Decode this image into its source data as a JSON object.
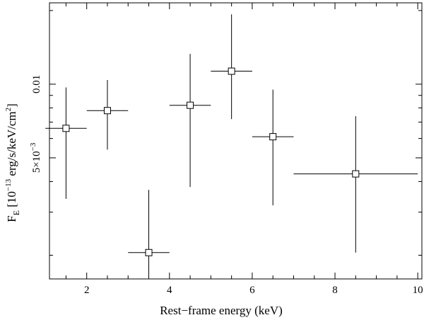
{
  "chart_data": {
    "type": "scatter",
    "title": "",
    "xlabel": "Rest−frame energy (keV)",
    "ylabel": "F_E [10^{-13} erg/s/keV/cm^2]",
    "ylabel_parts": {
      "f": "F",
      "sub": "E",
      "pre": " [10",
      "exp": "−13",
      "mid": " erg/s/keV/cm",
      "exp2": "2",
      "post": "]"
    },
    "xlim": [
      1.1,
      10.1
    ],
    "ylim": [
      0.0016,
      0.0215
    ],
    "yscale": "log",
    "x_ticks": [
      {
        "value": 2,
        "label": "2"
      },
      {
        "value": 4,
        "label": "4"
      },
      {
        "value": 6,
        "label": "6"
      },
      {
        "value": 8,
        "label": "8"
      },
      {
        "value": 10,
        "label": "10"
      }
    ],
    "y_ticks": [
      {
        "value": 0.005,
        "label_base": "5×10",
        "label_exp": "−3"
      },
      {
        "value": 0.01,
        "label_base": "0.01",
        "label_exp": ""
      }
    ],
    "y_minor_ticks": [
      0.002,
      0.003,
      0.004,
      0.006,
      0.007,
      0.008,
      0.009,
      0.02
    ],
    "x_minor_step": 0.5,
    "points": [
      {
        "x": 1.5,
        "xerr": 0.5,
        "y": 0.0066,
        "ylow": 0.0034,
        "yhigh": 0.0097
      },
      {
        "x": 2.5,
        "xerr": 0.5,
        "y": 0.0078,
        "ylow": 0.0054,
        "yhigh": 0.0104
      },
      {
        "x": 3.5,
        "xerr": 0.5,
        "y": 0.00205,
        "ylow": 0.00165,
        "yhigh": 0.0037
      },
      {
        "x": 4.5,
        "xerr": 0.5,
        "y": 0.0082,
        "ylow": 0.0038,
        "yhigh": 0.0133
      },
      {
        "x": 5.5,
        "xerr": 0.5,
        "y": 0.0113,
        "ylow": 0.0072,
        "yhigh": 0.0193
      },
      {
        "x": 6.5,
        "xerr": 0.5,
        "y": 0.0061,
        "ylow": 0.0032,
        "yhigh": 0.0095
      },
      {
        "x": 8.5,
        "xerr": 1.5,
        "y": 0.0043,
        "ylow": 0.00205,
        "yhigh": 0.0074
      }
    ]
  }
}
